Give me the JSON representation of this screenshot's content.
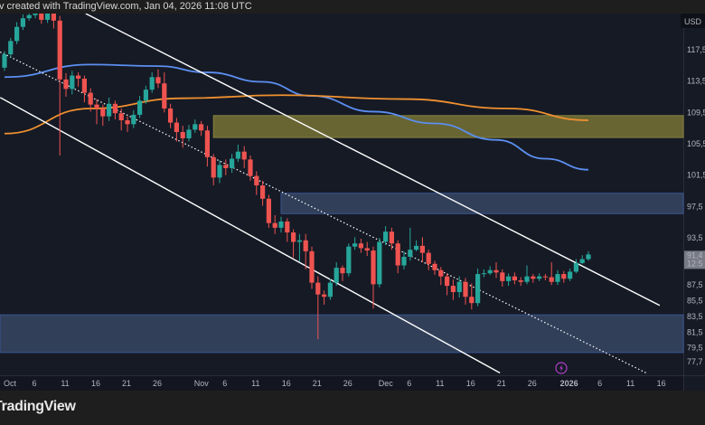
{
  "header": {
    "attribution": "v created with TradingView.com, Jan 04, 2026 11:08 UTC"
  },
  "footer": {
    "logo_text": "TradingView"
  },
  "price_axis": {
    "currency": "USD",
    "last_price_label": "91,4",
    "countdown_label": "12:5"
  },
  "colors": {
    "background": "#161a25",
    "up": "#26a69a",
    "down": "#ef5350",
    "ma_blue": "#5b8ff0",
    "ma_orange": "#f0912f",
    "zone_yellow": "#6d6a34",
    "zone_blue": "#33415c",
    "channel": "#ffffff",
    "alert_icon": "#b040c8"
  },
  "icons": {
    "alert": "lightning-icon"
  },
  "chart_data": {
    "type": "candlestick",
    "interval": "1D",
    "ylim": [
      76.0,
      122.1
    ],
    "y_tick_labels": [
      {
        "value": 117.5,
        "label": "117,5"
      },
      {
        "value": 113.5,
        "label": "113,5"
      },
      {
        "value": 109.5,
        "label": "109,5"
      },
      {
        "value": 105.5,
        "label": "105,5"
      },
      {
        "value": 101.5,
        "label": "101,5"
      },
      {
        "value": 97.5,
        "label": "97,5"
      },
      {
        "value": 93.5,
        "label": "93,5"
      },
      {
        "value": 87.5,
        "label": "87,5"
      },
      {
        "value": 85.5,
        "label": "85,5"
      },
      {
        "value": 83.5,
        "label": "83,5"
      },
      {
        "value": 81.5,
        "label": "81,5"
      },
      {
        "value": 79.5,
        "label": "79,5"
      },
      {
        "value": 77.7,
        "label": "77,7"
      }
    ],
    "x_tick_labels": [
      {
        "day": 0,
        "label": "Oct"
      },
      {
        "day": 5,
        "label": "6"
      },
      {
        "day": 10,
        "label": "11"
      },
      {
        "day": 15,
        "label": "16"
      },
      {
        "day": 20,
        "label": "21"
      },
      {
        "day": 25,
        "label": "26"
      },
      {
        "day": 31,
        "label": "Nov"
      },
      {
        "day": 36,
        "label": "6"
      },
      {
        "day": 41,
        "label": "11"
      },
      {
        "day": 46,
        "label": "16"
      },
      {
        "day": 51,
        "label": "21"
      },
      {
        "day": 56,
        "label": "26"
      },
      {
        "day": 61,
        "label": "Dec"
      },
      {
        "day": 66,
        "label": "6"
      },
      {
        "day": 71,
        "label": "11"
      },
      {
        "day": 76,
        "label": "16"
      },
      {
        "day": 81,
        "label": "21"
      },
      {
        "day": 86,
        "label": "26"
      },
      {
        "day": 92,
        "label": "2026"
      },
      {
        "day": 97,
        "label": "6"
      },
      {
        "day": 102,
        "label": "11"
      },
      {
        "day": 107,
        "label": "16"
      }
    ],
    "open": [
      115.2,
      116.9,
      118.6,
      120.4,
      121.5,
      121.9,
      122.1,
      121.3,
      122.1,
      121.2,
      113.7,
      112.5,
      114.2,
      113.8,
      112.0,
      110.5,
      110.0,
      109.0,
      110.6,
      109.4,
      108.5,
      108.0,
      109.2,
      111.0,
      112.4,
      114.0,
      113.2,
      110.0,
      108.2,
      107.0,
      106.2,
      107.3,
      108.0,
      107.2,
      103.8,
      101.2,
      102.8,
      102.4,
      103.6,
      104.5,
      103.5,
      101.4,
      100.2,
      98.5,
      95.4,
      94.8,
      95.6,
      94.2,
      93.0,
      93.2,
      91.8,
      87.8,
      86.3,
      86.0,
      87.8,
      89.7,
      89.0,
      92.4,
      92.8,
      92.2,
      91.9,
      87.6,
      93.0,
      94.3,
      92.8,
      90.0,
      91.1,
      92.0,
      92.5,
      91.6,
      90.2,
      89.4,
      88.6,
      87.4,
      86.6,
      87.9,
      86.0,
      85.2,
      88.9,
      89.0,
      89.4,
      89.1,
      88.0,
      88.6,
      88.1,
      87.9,
      88.6,
      88.3,
      88.6,
      88.5,
      87.9,
      88.9,
      88.3,
      89.2,
      90.3,
      90.8
    ],
    "high": [
      117.3,
      119.0,
      121.0,
      122.0,
      122.5,
      122.6,
      122.5,
      122.6,
      122.5,
      121.8,
      114.5,
      114.8,
      114.6,
      114.2,
      112.6,
      111.2,
      110.5,
      111.4,
      111.0,
      110.0,
      109.0,
      109.8,
      111.6,
      112.9,
      114.6,
      115.0,
      114.6,
      110.6,
      108.8,
      107.8,
      107.9,
      108.6,
      108.4,
      107.8,
      104.2,
      103.4,
      103.5,
      104.2,
      105.4,
      105.2,
      104.0,
      102.0,
      100.8,
      99.0,
      96.4,
      96.2,
      96.0,
      94.6,
      94.0,
      94.0,
      92.4,
      88.6,
      86.8,
      88.3,
      90.4,
      90.0,
      92.8,
      93.6,
      93.4,
      93.0,
      92.4,
      93.5,
      95.0,
      94.8,
      93.2,
      91.8,
      94.8,
      93.2,
      93.6,
      92.0,
      90.6,
      89.8,
      89.0,
      88.2,
      88.6,
      88.4,
      87.7,
      89.6,
      89.5,
      89.9,
      90.4,
      89.5,
      89.0,
      89.1,
      88.5,
      90.0,
      88.9,
      89.0,
      88.9,
      90.4,
      89.4,
      89.3,
      89.6,
      90.8,
      91.3,
      91.8
    ],
    "low": [
      114.8,
      116.5,
      118.2,
      120.0,
      121.2,
      121.5,
      120.8,
      120.9,
      120.2,
      104.0,
      111.5,
      111.8,
      112.8,
      110.8,
      109.6,
      108.0,
      107.8,
      108.4,
      108.6,
      107.2,
      107.0,
      107.5,
      108.8,
      110.6,
      112.0,
      112.6,
      109.5,
      107.5,
      105.8,
      105.0,
      105.8,
      106.9,
      106.5,
      102.6,
      100.2,
      100.5,
      101.5,
      101.8,
      103.2,
      102.4,
      100.8,
      99.0,
      97.6,
      94.8,
      94.0,
      94.2,
      93.0,
      91.0,
      90.5,
      89.5,
      87.0,
      80.6,
      85.0,
      85.6,
      87.4,
      88.0,
      88.6,
      92.0,
      91.6,
      91.2,
      84.5,
      87.2,
      92.6,
      92.0,
      89.0,
      89.5,
      90.6,
      91.8,
      90.4,
      89.4,
      88.8,
      87.5,
      86.2,
      85.6,
      85.9,
      85.0,
      84.4,
      84.8,
      88.5,
      88.8,
      88.4,
      87.3,
      87.4,
      87.6,
      87.4,
      87.6,
      87.8,
      88.0,
      88.1,
      87.5,
      87.5,
      87.8,
      88.0,
      89.0,
      90.2,
      90.6
    ],
    "close": [
      116.9,
      118.6,
      120.4,
      121.5,
      121.9,
      122.1,
      121.3,
      122.1,
      121.2,
      113.7,
      112.5,
      114.2,
      113.8,
      112.0,
      110.5,
      110.0,
      109.0,
      110.6,
      109.4,
      108.5,
      108.0,
      109.2,
      111.0,
      112.4,
      114.0,
      113.2,
      110.0,
      108.2,
      107.0,
      106.2,
      107.3,
      108.0,
      107.2,
      103.8,
      101.2,
      102.8,
      102.4,
      103.6,
      104.5,
      103.5,
      101.4,
      100.2,
      98.5,
      95.4,
      94.8,
      95.6,
      94.2,
      93.0,
      93.2,
      91.8,
      87.8,
      86.3,
      86.0,
      87.8,
      89.7,
      89.0,
      92.4,
      92.8,
      92.2,
      91.9,
      87.6,
      93.0,
      94.3,
      92.8,
      90.0,
      91.1,
      92.0,
      92.5,
      91.6,
      90.2,
      89.4,
      88.6,
      87.4,
      86.6,
      87.9,
      86.0,
      85.2,
      88.9,
      89.0,
      89.4,
      89.1,
      88.0,
      88.6,
      88.1,
      87.9,
      88.6,
      88.3,
      88.6,
      88.5,
      87.9,
      88.9,
      88.3,
      89.2,
      90.3,
      90.8,
      91.4
    ],
    "moving_averages": [
      {
        "color": "#5b8ff0",
        "points": [
          [
            0,
            114.0
          ],
          [
            14,
            115.6
          ],
          [
            25,
            115.4
          ],
          [
            33,
            114.6
          ],
          [
            42,
            113.4
          ],
          [
            50,
            111.6
          ],
          [
            60,
            109.6
          ],
          [
            70,
            108.1
          ],
          [
            80,
            106.0
          ],
          [
            88,
            103.6
          ],
          [
            95,
            102.2
          ]
        ]
      },
      {
        "color": "#f0912f",
        "points": [
          [
            0,
            106.8
          ],
          [
            14,
            110.0
          ],
          [
            29,
            111.3
          ],
          [
            45,
            111.7
          ],
          [
            65,
            111.2
          ],
          [
            82,
            110.0
          ],
          [
            95,
            108.5
          ]
        ]
      }
    ],
    "zones": [
      {
        "from_day": 34,
        "top": 109.1,
        "bottom": 106.3,
        "color": "#6d6a34"
      },
      {
        "from_day": 45,
        "top": 99.2,
        "bottom": 96.6,
        "color": "#33415c"
      },
      {
        "from_day": -1,
        "top": 83.7,
        "bottom": 78.9,
        "color": "#33415c"
      }
    ],
    "trend_lines": [
      {
        "style": "solid",
        "from": [
          13.2,
          122.1
        ],
        "to": [
          106.6,
          84.9
        ]
      },
      {
        "style": "solid",
        "from": [
          -0.7,
          111.4
        ],
        "to": [
          80.6,
          76.3
        ]
      },
      {
        "style": "dotted",
        "from": [
          -0.7,
          117.2
        ],
        "to": [
          104.4,
          76.3
        ]
      }
    ],
    "last_price": 91.4
  }
}
